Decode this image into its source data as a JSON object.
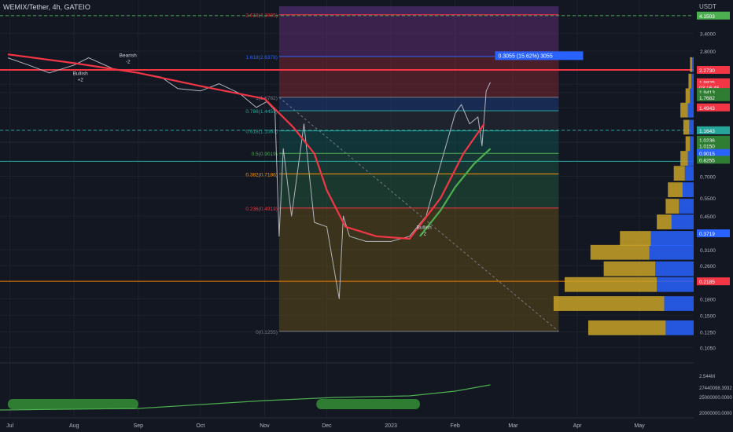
{
  "header": {
    "symbol": "WEMIX/Tether, 4h, GATEIO"
  },
  "y_axis": {
    "unit": "USDT",
    "ticks": [
      "4.1500",
      "3.4000",
      "2.8000",
      "1.9413",
      "1.7682",
      "1.4943",
      "1.1643",
      "1.0236",
      "1.0150",
      "0.8255",
      "0.7000",
      "0.5500",
      "0.4500",
      "0.3100",
      "0.2600",
      "0.1800",
      "0.1500",
      "0.1250",
      "0.1050"
    ],
    "tick_prices": [
      4.15,
      3.4,
      2.8,
      1.9413,
      1.7682,
      1.4943,
      1.1643,
      1.0236,
      1.015,
      0.8255,
      0.7,
      0.55,
      0.45,
      0.31,
      0.26,
      0.18,
      0.15,
      0.125,
      0.105
    ],
    "badges": [
      {
        "label": "4.1503",
        "price": 4.1503,
        "color": "#4caf50"
      },
      {
        "label": "2.2730",
        "price": 2.273,
        "color": "#f23645"
      },
      {
        "label": "1.9825",
        "price": 1.9825,
        "color": "#f23645"
      },
      {
        "label": "03:16:46",
        "price": 1.88,
        "color": "#f23645"
      },
      {
        "label": "1.9413",
        "price": 1.78,
        "color": "#2e7d32"
      },
      {
        "label": "1.7682",
        "price": 1.68,
        "color": "#2e7d32"
      },
      {
        "label": "1.4943",
        "price": 1.5,
        "color": "#f23645"
      },
      {
        "label": "1.1643",
        "price": 1.1643,
        "color": "#26a69a"
      },
      {
        "label": "1.0236",
        "price": 1.05,
        "color": "#2e7d32"
      },
      {
        "label": "1.0150",
        "price": 0.98,
        "color": "#2e7d32"
      },
      {
        "label": "0.9015",
        "price": 0.905,
        "color": "#2962ff"
      },
      {
        "label": "0.8255",
        "price": 0.84,
        "color": "#2e7d32"
      },
      {
        "label": "0.3719",
        "price": 0.3719,
        "color": "#2962ff"
      },
      {
        "label": "0.2185",
        "price": 0.2185,
        "color": "#f23645"
      }
    ],
    "osc_ticks": [
      "2.544M",
      "27440098.3932",
      "25000000.0000",
      "20000000.0000"
    ]
  },
  "x_axis": {
    "labels": [
      "Jul",
      "Aug",
      "Sep",
      "Oct",
      "Nov",
      "Dec",
      "2023",
      "Feb",
      "Mar",
      "Apr",
      "May"
    ]
  },
  "annotations": {
    "measure": "0.3055 (15.62%) 3055",
    "signals": [
      {
        "text": "Bullish",
        "sub": "+2",
        "x": "2022-08-04",
        "price": 2.15
      },
      {
        "text": "Bearish",
        "sub": "-2",
        "x": "2022-08-27",
        "price": 2.62
      },
      {
        "text": "Bullish",
        "sub": "-2",
        "x": "2023-01-17",
        "price": 0.39
      }
    ]
  },
  "chart_data": {
    "type": "line",
    "title": "WEMIX/Tether, 4h, GATEIO",
    "scale": "log",
    "ylim": [
      0.1,
      4.6
    ],
    "xlim": [
      "2022-06-30",
      "2023-05-31"
    ],
    "grid": true,
    "fib_levels": [
      {
        "label": "2.618(4.1905)",
        "price": 4.1905,
        "color": "#f23645"
      },
      {
        "label": "1.618(2.6378)",
        "price": 2.6378,
        "color": "#2962ff"
      },
      {
        "label": "1(1.6782)",
        "price": 1.6782,
        "color": "#787b86"
      },
      {
        "label": "0.786(1.4459)",
        "price": 1.4459,
        "color": "#26a69a"
      },
      {
        "label": "0.618(1.1567)",
        "price": 1.1567,
        "color": "#26a69a"
      },
      {
        "label": "0.5(0.9019)",
        "price": 0.9019,
        "color": "#4caf50"
      },
      {
        "label": "0.382(0.7186)",
        "price": 0.7186,
        "color": "#ff9800"
      },
      {
        "label": "0.236(0.4919)",
        "price": 0.4919,
        "color": "#f23645"
      },
      {
        "label": "0(0.1255)",
        "price": 0.1255,
        "color": "#787b86"
      }
    ],
    "horizontal_lines": [
      {
        "price": 4.1503,
        "color": "#4caf50",
        "style": "dashed"
      },
      {
        "price": 2.273,
        "color": "#f23645",
        "style": "solid"
      },
      {
        "price": 1.1643,
        "color": "#26a69a",
        "style": "dashed"
      },
      {
        "price": 0.8255,
        "color": "#26a69a",
        "style": "solid"
      },
      {
        "price": 0.2185,
        "color": "#f57c00",
        "style": "solid"
      }
    ],
    "series": [
      {
        "name": "",
        "color": "#b2b5be",
        "x": [
          "2022-06-30",
          "2022-07-10",
          "2022-07-20",
          "2022-08-01",
          "2022-08-08",
          "2022-08-20",
          "2022-09-01",
          "2022-09-12",
          "2022-09-20",
          "2022-10-01",
          "2022-10-10",
          "2022-10-20",
          "2022-10-28",
          "2022-11-02",
          "2022-11-06",
          "2022-11-08",
          "2022-11-10",
          "2022-11-14",
          "2022-11-20",
          "2022-11-25",
          "2022-12-01",
          "2022-12-07",
          "2022-12-09",
          "2022-12-12",
          "2022-12-20",
          "2023-01-01",
          "2023-01-10",
          "2023-01-18",
          "2023-01-25",
          "2023-02-01",
          "2023-02-04",
          "2023-02-08",
          "2023-02-12",
          "2023-02-14",
          "2023-02-16",
          "2023-02-18"
        ],
        "values": [
          2.6,
          2.4,
          2.2,
          2.4,
          2.6,
          2.3,
          2.2,
          2.1,
          1.85,
          1.8,
          1.95,
          1.75,
          1.5,
          1.6,
          1.45,
          0.36,
          0.95,
          0.45,
          1.25,
          0.42,
          0.4,
          0.18,
          0.45,
          0.36,
          0.34,
          0.34,
          0.36,
          0.45,
          0.8,
          1.4,
          1.55,
          1.25,
          1.35,
          0.98,
          1.8,
          1.98
        ]
      },
      {
        "name": "",
        "color": "#f23645",
        "x": [
          "2022-06-30",
          "2022-08-01",
          "2022-09-01",
          "2022-10-01",
          "2022-11-01",
          "2022-11-15",
          "2022-11-25",
          "2022-12-01",
          "2022-12-10",
          "2022-12-25",
          "2023-01-10",
          "2023-01-25",
          "2023-02-05",
          "2023-02-15"
        ],
        "values": [
          2.7,
          2.45,
          2.2,
          1.9,
          1.65,
          1.2,
          0.9,
          0.6,
          0.4,
          0.36,
          0.35,
          0.55,
          0.9,
          1.25
        ]
      },
      {
        "name": "",
        "color": "#4caf50",
        "x": [
          "2023-01-15",
          "2023-01-25",
          "2023-02-01",
          "2023-02-10",
          "2023-02-18"
        ],
        "values": [
          0.36,
          0.48,
          0.62,
          0.8,
          0.95
        ]
      }
    ],
    "volume_profile": {
      "prices": [
        0.13,
        0.17,
        0.21,
        0.25,
        0.3,
        0.35,
        0.42,
        0.5,
        0.6,
        0.72,
        0.85,
        1.0,
        1.2,
        1.45,
        1.7,
        2.0,
        2.4
      ],
      "buy": [
        38,
        40,
        50,
        52,
        60,
        58,
        30,
        20,
        15,
        12,
        8,
        5,
        6,
        8,
        5,
        3,
        2
      ],
      "sell": [
        105,
        150,
        125,
        70,
        80,
        42,
        20,
        18,
        20,
        15,
        10,
        6,
        8,
        10,
        6,
        4,
        3
      ]
    }
  }
}
